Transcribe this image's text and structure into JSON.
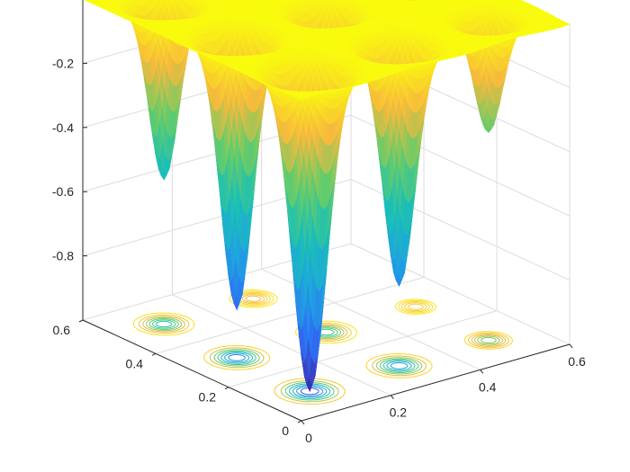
{
  "chart_data": {
    "type": "surface",
    "title": "",
    "xlabel": "",
    "ylabel": "",
    "zlabel": "",
    "x_ticks": [
      "0",
      "0.2",
      "0.4",
      "0.6"
    ],
    "y_ticks": [
      "0",
      "0.2",
      "0.4",
      "0.6"
    ],
    "z_ticks": [
      "-0.8",
      "-0.6",
      "-0.4",
      "-0.2"
    ],
    "xlim": [
      0,
      0.6
    ],
    "ylim": [
      0,
      0.6
    ],
    "zlim": [
      -1,
      0
    ],
    "grid": true,
    "colormap": [
      "#3d26a8",
      "#2f6ef5",
      "#1fa3e0",
      "#1cc0b4",
      "#68cc68",
      "#f8ba3c",
      "#f9fb0e"
    ],
    "contour_projection": true,
    "wells": [
      {
        "x": 0.1,
        "y": 0.1,
        "depth": -1.0,
        "width": 0.03
      },
      {
        "x": 0.3,
        "y": 0.1,
        "depth": -0.75,
        "width": 0.028
      },
      {
        "x": 0.5,
        "y": 0.1,
        "depth": -0.35,
        "width": 0.025
      },
      {
        "x": 0.1,
        "y": 0.3,
        "depth": -0.85,
        "width": 0.028
      },
      {
        "x": 0.3,
        "y": 0.3,
        "depth": -0.5,
        "width": 0.026
      },
      {
        "x": 0.5,
        "y": 0.3,
        "depth": -0.15,
        "width": 0.025
      },
      {
        "x": 0.1,
        "y": 0.5,
        "depth": -0.55,
        "width": 0.026
      },
      {
        "x": 0.3,
        "y": 0.5,
        "depth": -0.2,
        "width": 0.025
      },
      {
        "x": 0.5,
        "y": 0.5,
        "depth": -0.05,
        "width": 0.025
      }
    ]
  }
}
